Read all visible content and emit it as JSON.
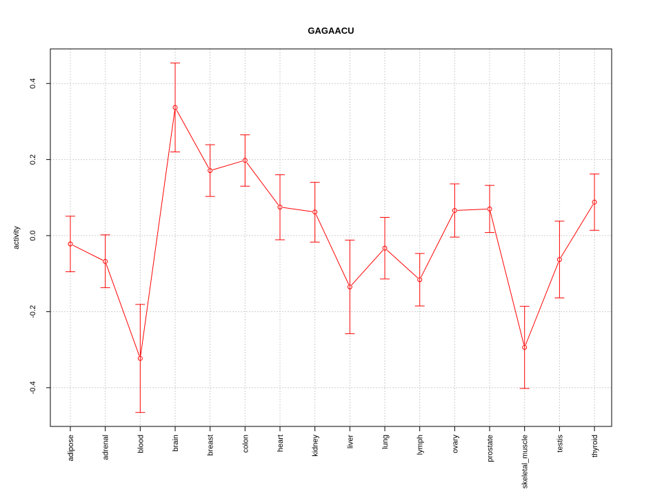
{
  "chart_data": {
    "type": "line",
    "title": "GAGAACU",
    "xlabel": "",
    "ylabel": "activity",
    "ylim": [
      -0.5,
      0.49
    ],
    "yticks": [
      -0.4,
      -0.2,
      0.0,
      0.2,
      0.4
    ],
    "ytick_labels": [
      "-0.4",
      "-0.2",
      "0.0",
      "0.2",
      "0.4"
    ],
    "grid": true,
    "color": "#ff0000",
    "categories": [
      "adipose",
      "adrenal",
      "blood",
      "brain",
      "breast",
      "colon",
      "heart",
      "kidney",
      "liver",
      "lung",
      "lymph",
      "ovary",
      "prostate",
      "skeletal_muscle",
      "testis",
      "thyroid"
    ],
    "series": [
      {
        "name": "activity",
        "values": [
          -0.022,
          -0.068,
          -0.323,
          0.337,
          0.171,
          0.198,
          0.075,
          0.062,
          -0.135,
          -0.033,
          -0.116,
          0.066,
          0.07,
          -0.294,
          -0.063,
          0.088
        ],
        "upper": [
          0.051,
          0.002,
          -0.181,
          0.454,
          0.239,
          0.265,
          0.16,
          0.14,
          -0.012,
          0.048,
          -0.047,
          0.136,
          0.132,
          -0.186,
          0.038,
          0.162
        ],
        "lower": [
          -0.095,
          -0.137,
          -0.465,
          0.22,
          0.103,
          0.13,
          -0.011,
          -0.017,
          -0.258,
          -0.114,
          -0.185,
          -0.004,
          0.008,
          -0.402,
          -0.164,
          0.014
        ]
      }
    ]
  }
}
